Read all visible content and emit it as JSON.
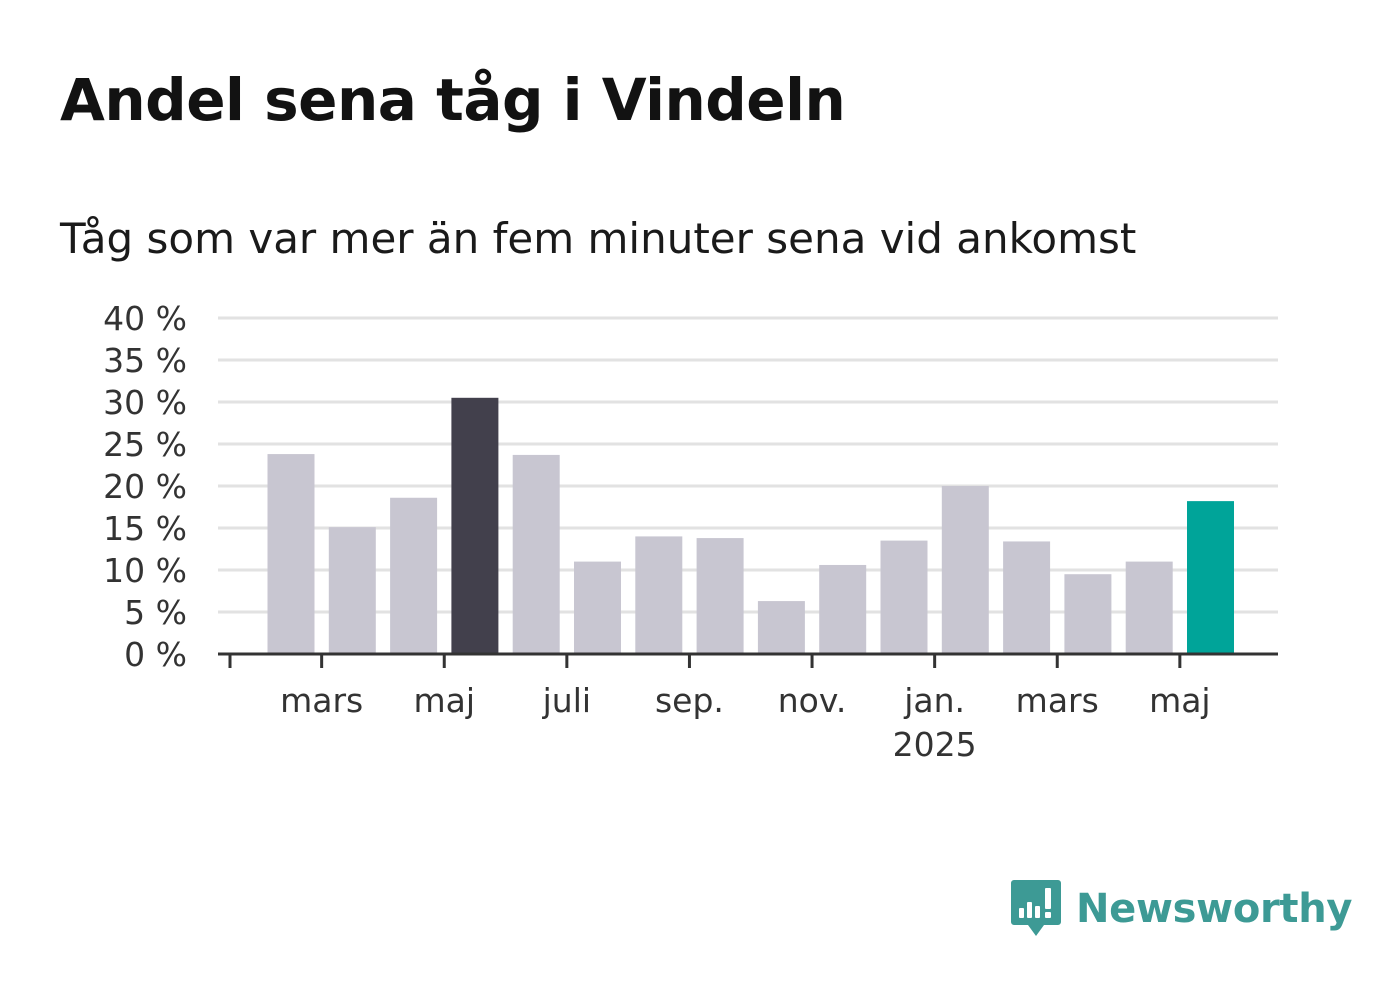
{
  "header": {
    "title": "Andel sena tåg i Vindeln",
    "subtitle": "Tåg som var mer än fem minuter sena vid ankomst"
  },
  "brand": {
    "name": "Newsworthy",
    "color": "#3d9a95"
  },
  "colors": {
    "bar_default": "#c8c6d1",
    "bar_max": "#42404c",
    "bar_latest": "#00a499",
    "grid": "#e2e2e2",
    "axis": "#333333"
  },
  "chart_data": {
    "type": "bar",
    "title": "Andel sena tåg i Vindeln",
    "subtitle": "Tåg som var mer än fem minuter sena vid ankomst",
    "categories": [
      "2024-02",
      "2024-03",
      "2024-04",
      "2024-05",
      "2024-06",
      "2024-07",
      "2024-08",
      "2024-09",
      "2024-10",
      "2024-11",
      "2024-12",
      "2025-01",
      "2025-02",
      "2025-03",
      "2025-04",
      "2025-05"
    ],
    "values": [
      23.8,
      15.1,
      18.6,
      30.5,
      23.7,
      11.0,
      14.0,
      13.8,
      6.3,
      10.6,
      13.5,
      20.0,
      13.4,
      9.5,
      11.0,
      18.2
    ],
    "highlight": {
      "max_index": 3,
      "latest_index": 15
    },
    "ylim": [
      0,
      40
    ],
    "yticks": [
      {
        "value": 0,
        "label": "0 %"
      },
      {
        "value": 5,
        "label": "5 %"
      },
      {
        "value": 10,
        "label": "10 %"
      },
      {
        "value": 15,
        "label": "15 %"
      },
      {
        "value": 20,
        "label": "20 %"
      },
      {
        "value": 25,
        "label": "25 %"
      },
      {
        "value": 30,
        "label": "30 %"
      },
      {
        "value": 35,
        "label": "35 %"
      },
      {
        "value": 40,
        "label": "40 %"
      }
    ],
    "xticks": [
      {
        "index": 1,
        "label": "mars",
        "sub": ""
      },
      {
        "index": 3,
        "label": "maj",
        "sub": ""
      },
      {
        "index": 5,
        "label": "juli",
        "sub": ""
      },
      {
        "index": 7,
        "label": "sep.",
        "sub": ""
      },
      {
        "index": 9,
        "label": "nov.",
        "sub": ""
      },
      {
        "index": 11,
        "label": "jan.",
        "sub": "2025"
      },
      {
        "index": 13,
        "label": "mars",
        "sub": ""
      },
      {
        "index": 15,
        "label": "maj",
        "sub": ""
      }
    ],
    "xlabel": "",
    "ylabel": "",
    "grid": true,
    "legend": "none"
  }
}
